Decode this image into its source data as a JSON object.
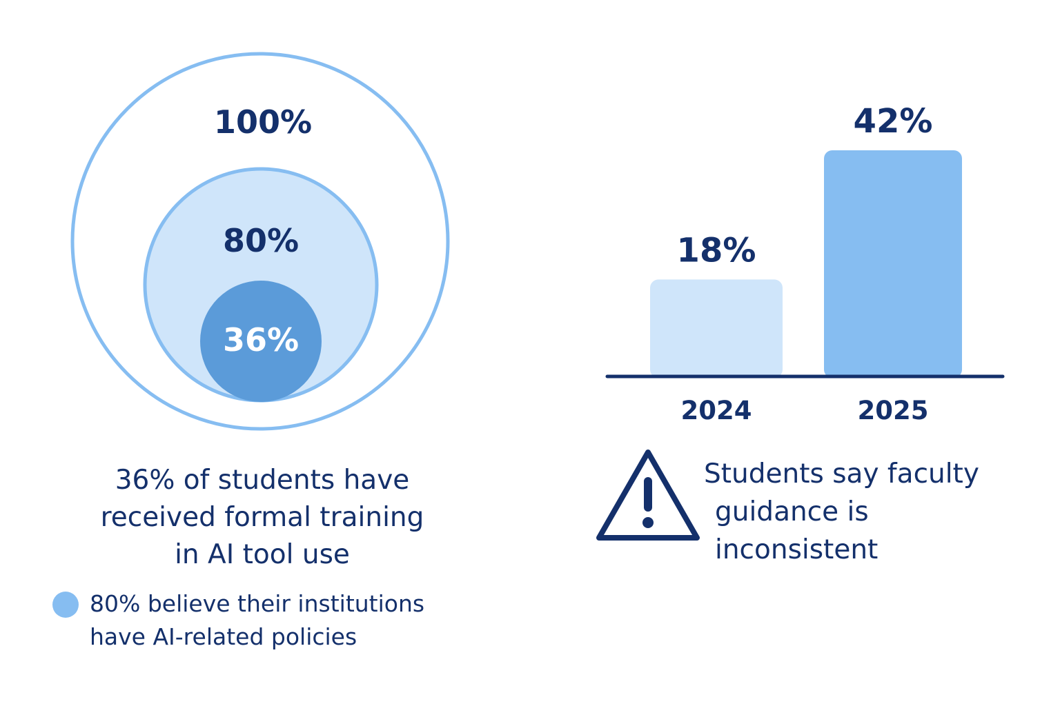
{
  "chart_data": [
    {
      "type": "nested-circles",
      "values": [
        {
          "label": "100%",
          "value": 100
        },
        {
          "label": "80%",
          "value": 80
        },
        {
          "label": "36%",
          "value": 36
        }
      ],
      "caption": "36% of students have received formal training in AI tool use",
      "caption_lines": [
        "36% of students have",
        "received formal training",
        "in AI tool use"
      ],
      "legend": {
        "color": "#86bdf1",
        "lines": [
          "80% believe their institutions",
          "have AI-related policies"
        ]
      }
    },
    {
      "type": "bar",
      "categories": [
        "2024",
        "2025"
      ],
      "values": [
        18,
        42
      ],
      "value_labels": [
        "18%",
        "42%"
      ],
      "bar_colors": [
        "#cfe5fa",
        "#86bdf1"
      ]
    }
  ],
  "warning": {
    "icon": "warning-triangle-icon",
    "lines": [
      "Students say faculty",
      "guidance is",
      "inconsistent"
    ]
  },
  "colors": {
    "text": "#14306b",
    "outer_ring": "#86bdf1",
    "middle_fill": "#cfe5fa",
    "inner_fill": "#5b9bd9",
    "axis": "#14306b"
  }
}
